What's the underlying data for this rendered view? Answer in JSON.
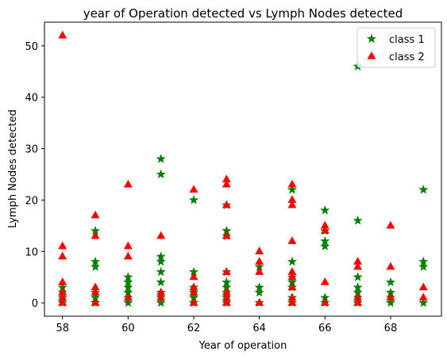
{
  "chart_data": {
    "type": "scatter",
    "title": "year of Operation detected vs Lymph Nodes detected",
    "xlabel": "Year of operation",
    "ylabel": "Lymph Nodes detected",
    "xlim": [
      57.45,
      69.55
    ],
    "ylim": [
      -2.6,
      54.6
    ],
    "xticks": [
      58,
      60,
      62,
      64,
      66,
      68
    ],
    "yticks": [
      0,
      10,
      20,
      30,
      40,
      50
    ],
    "grid": false,
    "legend_position": "upper right",
    "series": [
      {
        "name": "class 1",
        "marker": "star",
        "color": "#008000",
        "points": [
          [
            58,
            0
          ],
          [
            58,
            1
          ],
          [
            58,
            2
          ],
          [
            58,
            3
          ],
          [
            59,
            0
          ],
          [
            59,
            1
          ],
          [
            59,
            2
          ],
          [
            59,
            7
          ],
          [
            59,
            8
          ],
          [
            59,
            14
          ],
          [
            60,
            0
          ],
          [
            60,
            1
          ],
          [
            60,
            2
          ],
          [
            60,
            3
          ],
          [
            60,
            4
          ],
          [
            60,
            5
          ],
          [
            61,
            0
          ],
          [
            61,
            1
          ],
          [
            61,
            2
          ],
          [
            61,
            4
          ],
          [
            61,
            6
          ],
          [
            61,
            8
          ],
          [
            61,
            9
          ],
          [
            61,
            25
          ],
          [
            61,
            28
          ],
          [
            62,
            0
          ],
          [
            62,
            1
          ],
          [
            62,
            2
          ],
          [
            62,
            3
          ],
          [
            62,
            6
          ],
          [
            62,
            20
          ],
          [
            63,
            0
          ],
          [
            63,
            1
          ],
          [
            63,
            2
          ],
          [
            63,
            3
          ],
          [
            63,
            4
          ],
          [
            63,
            6
          ],
          [
            63,
            13
          ],
          [
            63,
            14
          ],
          [
            63,
            19
          ],
          [
            64,
            0
          ],
          [
            64,
            2
          ],
          [
            64,
            3
          ],
          [
            64,
            7
          ],
          [
            65,
            0
          ],
          [
            65,
            1
          ],
          [
            65,
            3
          ],
          [
            65,
            4
          ],
          [
            65,
            5
          ],
          [
            65,
            8
          ],
          [
            65,
            22
          ],
          [
            66,
            0
          ],
          [
            66,
            1
          ],
          [
            66,
            11
          ],
          [
            66,
            12
          ],
          [
            66,
            14
          ],
          [
            66,
            18
          ],
          [
            67,
            0
          ],
          [
            67,
            1
          ],
          [
            67,
            2
          ],
          [
            67,
            3
          ],
          [
            67,
            5
          ],
          [
            67,
            16
          ],
          [
            67,
            46
          ],
          [
            68,
            0
          ],
          [
            68,
            1
          ],
          [
            68,
            2
          ],
          [
            68,
            4
          ],
          [
            69,
            0
          ],
          [
            69,
            7
          ],
          [
            69,
            8
          ],
          [
            69,
            22
          ]
        ]
      },
      {
        "name": "class 2",
        "marker": "triangle",
        "color": "#ff0000",
        "points": [
          [
            58,
            0
          ],
          [
            58,
            1
          ],
          [
            58,
            2
          ],
          [
            58,
            4
          ],
          [
            58,
            9
          ],
          [
            58,
            11
          ],
          [
            58,
            52
          ],
          [
            59,
            0
          ],
          [
            59,
            2
          ],
          [
            59,
            3
          ],
          [
            59,
            13
          ],
          [
            59,
            17
          ],
          [
            60,
            1
          ],
          [
            60,
            9
          ],
          [
            60,
            11
          ],
          [
            60,
            23
          ],
          [
            61,
            1
          ],
          [
            61,
            2
          ],
          [
            61,
            13
          ],
          [
            62,
            0
          ],
          [
            62,
            2
          ],
          [
            62,
            3
          ],
          [
            62,
            5
          ],
          [
            62,
            22
          ],
          [
            63,
            0
          ],
          [
            63,
            1
          ],
          [
            63,
            2
          ],
          [
            63,
            6
          ],
          [
            63,
            13
          ],
          [
            63,
            19
          ],
          [
            63,
            23
          ],
          [
            63,
            24
          ],
          [
            64,
            0
          ],
          [
            64,
            6
          ],
          [
            64,
            8
          ],
          [
            64,
            10
          ],
          [
            65,
            0
          ],
          [
            65,
            1
          ],
          [
            65,
            3
          ],
          [
            65,
            5
          ],
          [
            65,
            6
          ],
          [
            65,
            12
          ],
          [
            65,
            19
          ],
          [
            65,
            20
          ],
          [
            65,
            23
          ],
          [
            66,
            0
          ],
          [
            66,
            4
          ],
          [
            66,
            14
          ],
          [
            66,
            15
          ],
          [
            67,
            0
          ],
          [
            67,
            1
          ],
          [
            67,
            7
          ],
          [
            67,
            8
          ],
          [
            68,
            1
          ],
          [
            68,
            7
          ],
          [
            68,
            15
          ],
          [
            69,
            1
          ],
          [
            69,
            3
          ]
        ]
      }
    ]
  }
}
